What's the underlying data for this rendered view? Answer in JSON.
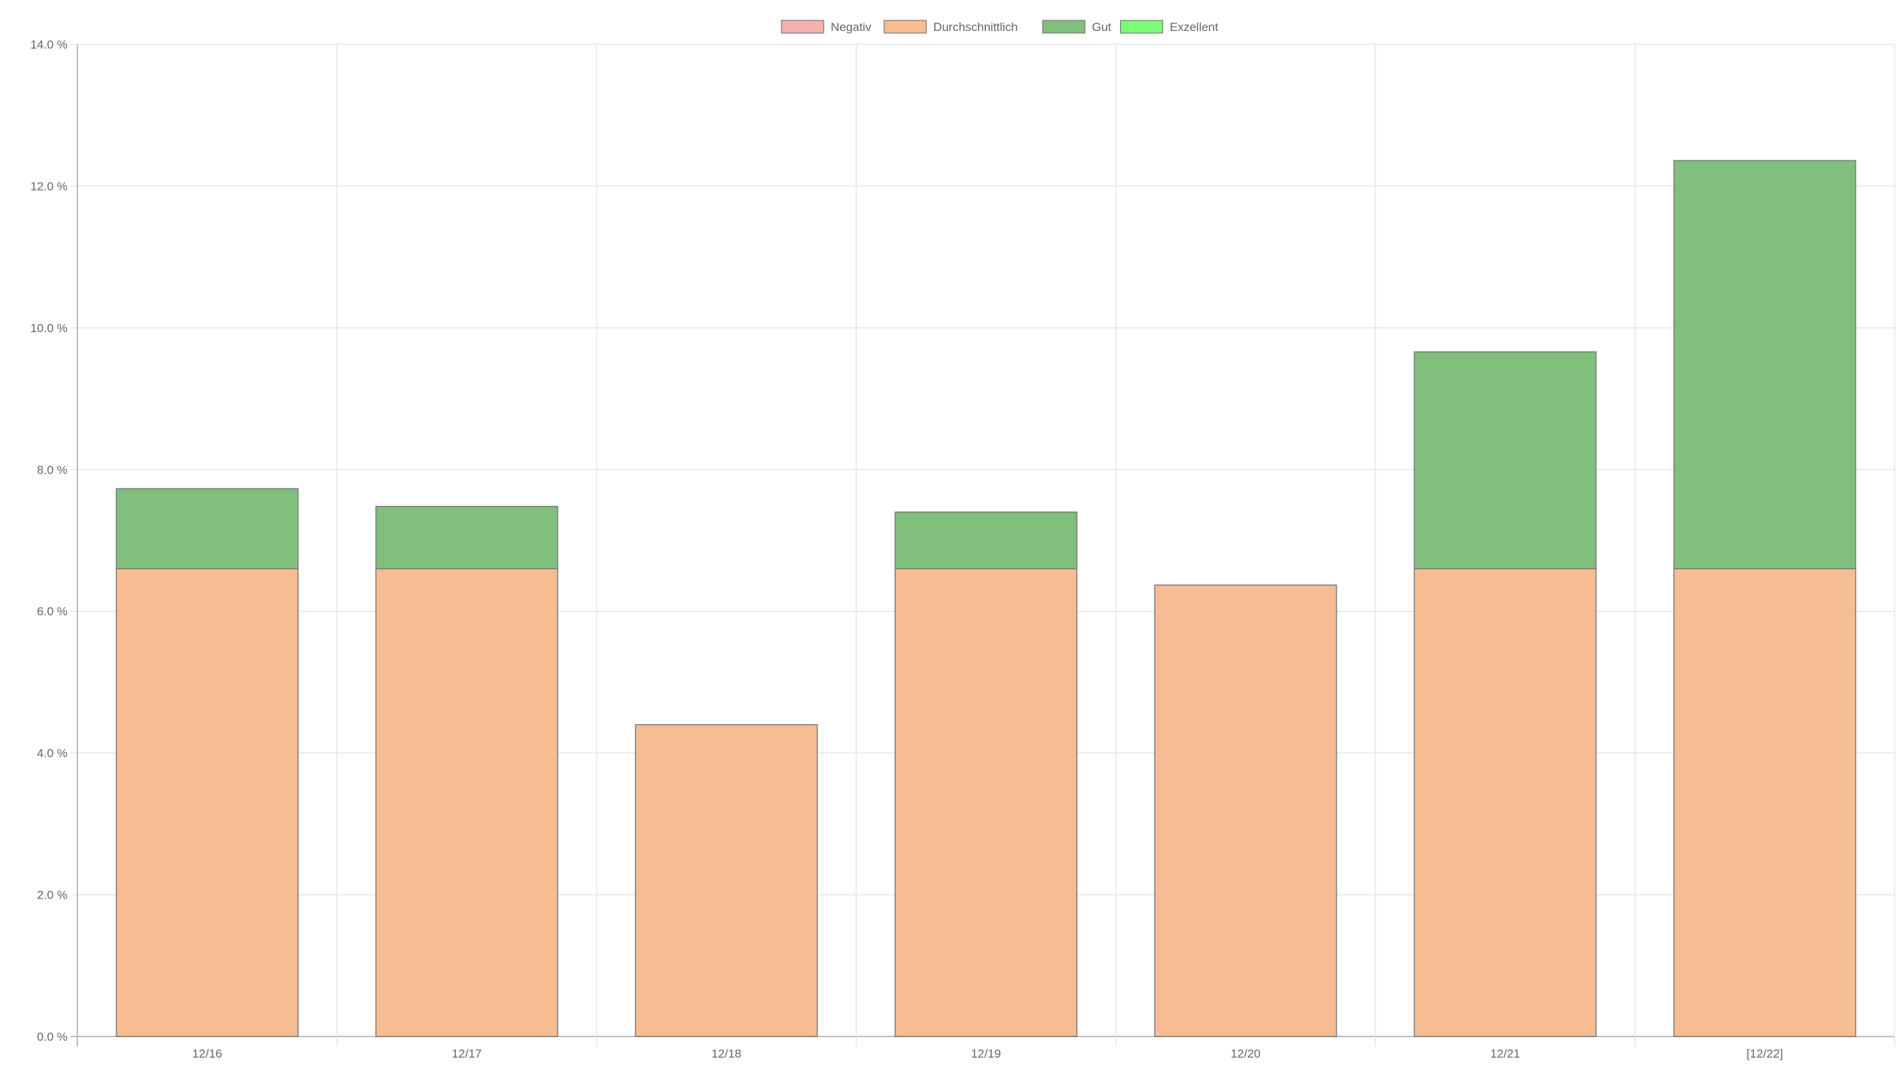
{
  "colors": {
    "grid": "#e5e5e5",
    "axis": "#bdbdbd",
    "text": "#666666",
    "bar_border": "#7a7a7a"
  },
  "chart_data": {
    "type": "bar",
    "stacked": true,
    "title": "",
    "xlabel": "",
    "ylabel": "",
    "categories": [
      "12/16",
      "12/17",
      "12/18",
      "12/19",
      "12/20",
      "12/21",
      "[12/22]"
    ],
    "ylim": [
      0,
      14
    ],
    "yticks": [
      0,
      2,
      4,
      6,
      8,
      10,
      12,
      14
    ],
    "ytick_labels": [
      "0.0 %",
      "2.0 %",
      "4.0 %",
      "6.0 %",
      "8.0 %",
      "10.0 %",
      "12.0 %",
      "14.0 %"
    ],
    "grid": true,
    "legend": {
      "position": "top-center"
    },
    "series": [
      {
        "name": "Negativ",
        "color": "#f4b0ac",
        "values": [
          0,
          0,
          0,
          0,
          0,
          0,
          0
        ]
      },
      {
        "name": "Durchschnittlich",
        "color": "#f5bd91",
        "values": [
          6.6,
          6.6,
          4.4,
          6.6,
          6.37,
          6.6,
          6.6
        ]
      },
      {
        "name": "Gut",
        "color": "#80bf7c",
        "values": [
          1.13,
          0.88,
          0,
          0.8,
          0,
          3.06,
          5.76
        ]
      },
      {
        "name": "Exzellent",
        "color": "#7dfb77",
        "values": [
          0,
          0,
          0,
          0,
          0,
          0,
          0
        ]
      }
    ]
  }
}
